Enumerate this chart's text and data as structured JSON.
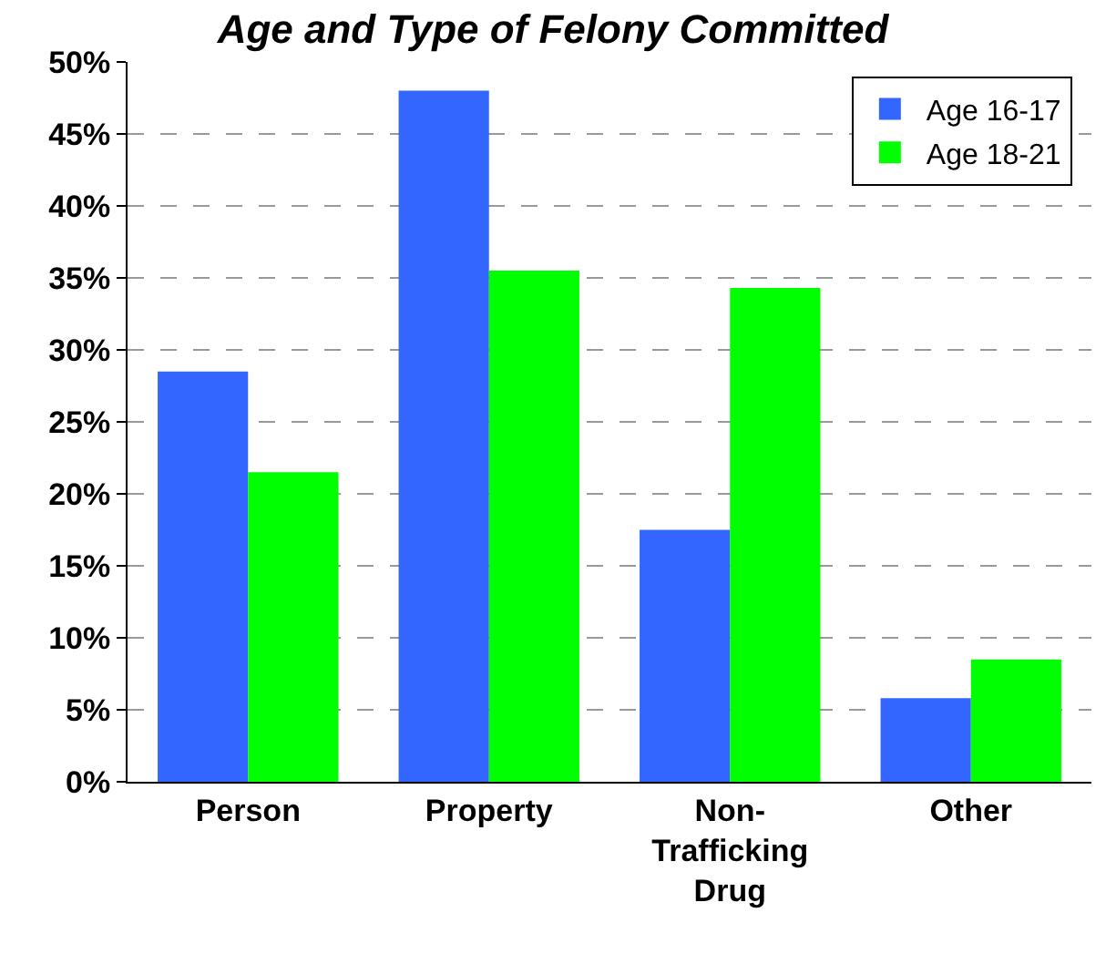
{
  "chart_data": {
    "type": "bar",
    "title": "Age and Type of Felony Committed",
    "categories": [
      "Person",
      "Property",
      "Non-Trafficking Drug",
      "Other"
    ],
    "series": [
      {
        "name": "Age 16-17",
        "color": "#3366ff",
        "values": [
          28.5,
          48,
          17.5,
          5.8
        ]
      },
      {
        "name": "Age 18-21",
        "color": "#00ff00",
        "values": [
          21.5,
          35.5,
          34.3,
          8.5
        ]
      }
    ],
    "ylim": [
      0,
      50
    ],
    "yticks": [
      {
        "value": 0,
        "label": "0%"
      },
      {
        "value": 5,
        "label": "5%"
      },
      {
        "value": 10,
        "label": "10%"
      },
      {
        "value": 15,
        "label": "15%"
      },
      {
        "value": 20,
        "label": "20%"
      },
      {
        "value": 25,
        "label": "25%"
      },
      {
        "value": 30,
        "label": "30%"
      },
      {
        "value": 35,
        "label": "35%"
      },
      {
        "value": 40,
        "label": "40%"
      },
      {
        "value": 45,
        "label": "45%"
      },
      {
        "value": 50,
        "label": "50%"
      }
    ],
    "grid": "y",
    "legend": "top right"
  }
}
